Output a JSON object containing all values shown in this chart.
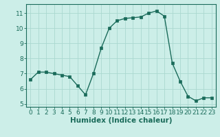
{
  "x": [
    0,
    1,
    2,
    3,
    4,
    5,
    6,
    7,
    8,
    9,
    10,
    11,
    12,
    13,
    14,
    15,
    16,
    17,
    18,
    19,
    20,
    21,
    22,
    23
  ],
  "y": [
    6.6,
    7.1,
    7.1,
    7.0,
    6.9,
    6.8,
    6.2,
    5.6,
    7.0,
    8.7,
    10.0,
    10.5,
    10.65,
    10.7,
    10.75,
    11.0,
    11.15,
    10.8,
    7.7,
    6.5,
    5.5,
    5.2,
    5.4,
    5.4
  ],
  "xlim": [
    -0.5,
    23.5
  ],
  "ylim": [
    4.8,
    11.6
  ],
  "yticks": [
    5,
    6,
    7,
    8,
    9,
    10,
    11
  ],
  "xticks": [
    0,
    1,
    2,
    3,
    4,
    5,
    6,
    7,
    8,
    9,
    10,
    11,
    12,
    13,
    14,
    15,
    16,
    17,
    18,
    19,
    20,
    21,
    22,
    23
  ],
  "xlabel": "Humidex (Indice chaleur)",
  "line_color": "#1a6b5a",
  "marker_color": "#1a6b5a",
  "bg_color": "#cceee8",
  "grid_color": "#aad8d0",
  "axis_color": "#1a6b5a",
  "tick_label_color": "#1a6b5a",
  "xlabel_color": "#1a6b5a",
  "tick_fontsize": 6.5,
  "xlabel_fontsize": 7.5
}
